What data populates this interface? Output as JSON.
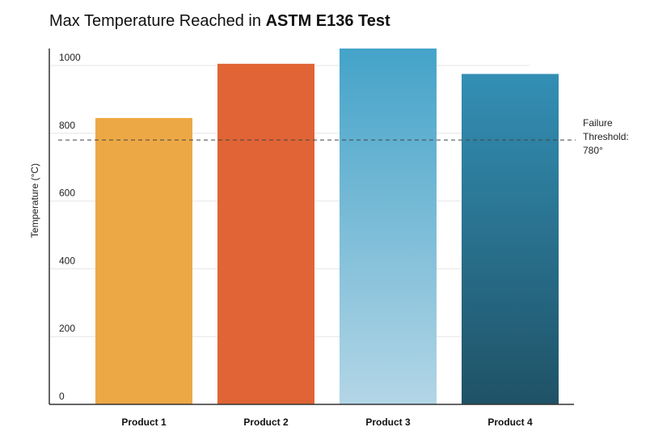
{
  "chart_data": {
    "type": "bar",
    "title": "Max Temperature Reached in ASTM E136 Test",
    "title_regular": "Max Temperature Reached in ",
    "title_bold": "ASTM E136 Test",
    "xlabel": "",
    "ylabel": "Temperature (°C)",
    "categories": [
      "Product 1",
      "Product 2",
      "Product 3",
      "Product 4"
    ],
    "values": [
      845,
      1005,
      1050,
      975
    ],
    "ylim": [
      0,
      1050
    ],
    "yticks": [
      0,
      200,
      400,
      600,
      800,
      1000
    ],
    "ytick_labels": [
      "0",
      "200",
      "400",
      "600",
      "800",
      "1000"
    ],
    "grid": true,
    "threshold": {
      "value": 780,
      "label_lines": [
        "Failure",
        "Threshold:",
        "780°"
      ]
    },
    "colors": {
      "product1": "#EDA846",
      "product2": "#E06436",
      "product3_top": "#44A3C9",
      "product3_bottom": "#B3D6E6",
      "product4_top": "#338FB5",
      "product4_bottom": "#1F5266",
      "axis": "#333333",
      "grid": "#e6e6e6",
      "text": "#222222"
    }
  }
}
